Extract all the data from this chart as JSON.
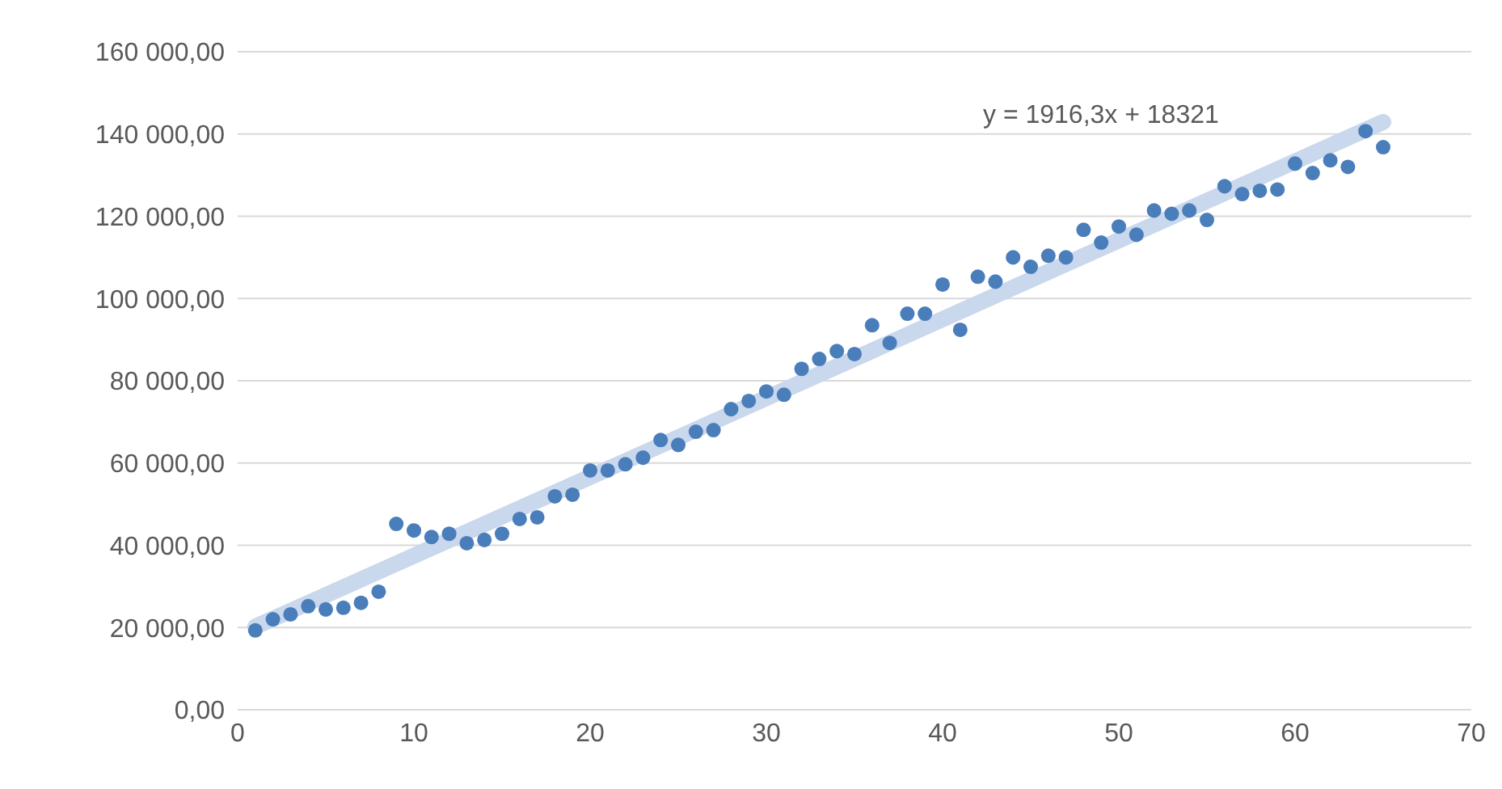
{
  "chart_data": {
    "type": "scatter",
    "xlim": [
      0,
      70
    ],
    "xticks": [
      0,
      10,
      20,
      30,
      40,
      50,
      60,
      70
    ],
    "ylim": [
      0,
      160000
    ],
    "yticks": [
      {
        "value": 0,
        "label": "0,00"
      },
      {
        "value": 20000,
        "label": "20 000,00"
      },
      {
        "value": 40000,
        "label": "40 000,00"
      },
      {
        "value": 60000,
        "label": "60 000,00"
      },
      {
        "value": 80000,
        "label": "80 000,00"
      },
      {
        "value": 100000,
        "label": "100 000,00"
      },
      {
        "value": 120000,
        "label": "120 000,00"
      },
      {
        "value": 140000,
        "label": "140 000,00"
      },
      {
        "value": 160000,
        "label": "160 000,00"
      }
    ],
    "grid": "y",
    "legend": false,
    "series": [
      {
        "marker": "circle",
        "color": "#4a7ebb",
        "x": [
          1,
          2,
          3,
          4,
          5,
          6,
          7,
          8,
          9,
          10,
          11,
          12,
          13,
          14,
          15,
          16,
          17,
          18,
          19,
          20,
          21,
          22,
          23,
          24,
          25,
          26,
          27,
          28,
          29,
          30,
          31,
          32,
          33,
          34,
          35,
          36,
          37,
          38,
          39,
          40,
          41,
          42,
          43,
          44,
          45,
          46,
          47,
          48,
          49,
          50,
          51,
          52,
          53,
          54,
          55,
          56,
          57,
          58,
          59,
          60,
          61,
          62,
          63,
          64,
          65
        ],
        "values": [
          19300,
          22000,
          23200,
          25200,
          24400,
          24800,
          26000,
          28700,
          45200,
          43600,
          42000,
          42800,
          40500,
          41300,
          42800,
          46400,
          46800,
          51900,
          52300,
          58200,
          58200,
          59700,
          61300,
          65600,
          64400,
          67600,
          68000,
          73100,
          75100,
          77400,
          76600,
          82900,
          85300,
          87200,
          86500,
          93500,
          89200,
          96300,
          96300,
          103400,
          92400,
          105300,
          104100,
          110000,
          107700,
          110400,
          110000,
          116700,
          113600,
          117500,
          115500,
          121400,
          120600,
          121400,
          119100,
          127300,
          125400,
          126200,
          126500,
          132800,
          130500,
          133600,
          132000,
          140700,
          136800
        ]
      },
      {
        "type": "line",
        "color": "#c9d8ec",
        "x": [
          1,
          65
        ],
        "values": [
          20200,
          142900
        ]
      }
    ],
    "annotations": [
      "y = 1916,3x + 18321"
    ]
  }
}
